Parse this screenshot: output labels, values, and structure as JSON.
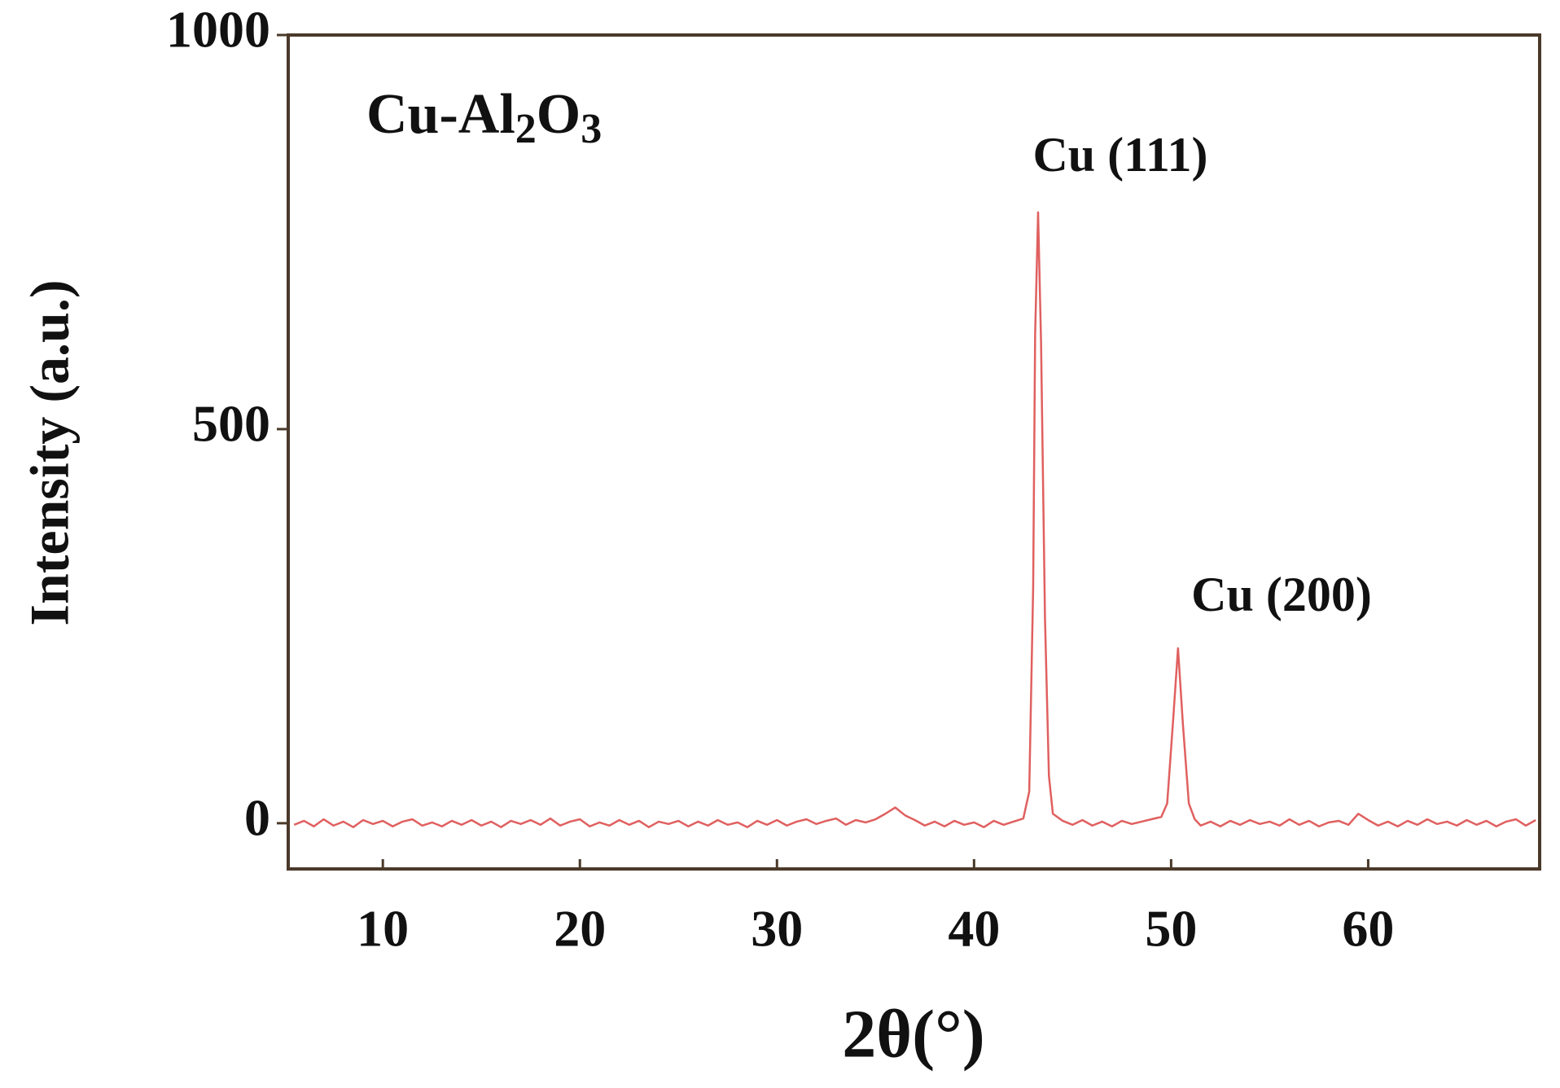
{
  "chart_data": {
    "type": "line",
    "x_label": "2θ(°)",
    "y_label": "Intensity (a.u.)",
    "annotations": [
      "Cu-Al2O3",
      "Cu (111)",
      "Cu (200)"
    ],
    "xlim": [
      5.2,
      68.7
    ],
    "ylim": [
      -58,
      1000
    ],
    "xticks": [
      10,
      20,
      30,
      40,
      50,
      60
    ],
    "yticks": [
      0,
      500,
      1000
    ],
    "grid": false,
    "series": [
      {
        "color": "#e06060",
        "x": [
          5.5,
          6,
          6.5,
          7,
          7.5,
          8,
          8.5,
          9,
          9.5,
          10,
          10.5,
          11,
          11.5,
          12,
          12.5,
          13,
          13.5,
          14,
          14.5,
          15,
          15.5,
          16,
          16.5,
          17,
          17.5,
          18,
          18.5,
          19,
          19.5,
          20,
          20.5,
          21,
          21.5,
          22,
          22.5,
          23,
          23.5,
          24,
          24.5,
          25,
          25.5,
          26,
          26.5,
          27,
          27.5,
          28,
          28.5,
          29,
          29.5,
          30,
          30.5,
          31,
          31.5,
          32,
          32.5,
          33,
          33.5,
          34,
          34.5,
          35,
          35.5,
          36,
          36.5,
          37,
          37.5,
          38,
          38.5,
          39,
          39.5,
          40,
          40.5,
          41,
          41.5,
          42,
          42.5,
          42.8,
          43,
          43.1,
          43.25,
          43.4,
          43.6,
          43.8,
          44,
          44.5,
          45,
          45.5,
          46,
          46.5,
          47,
          47.5,
          48,
          48.5,
          49,
          49.5,
          49.8,
          50.1,
          50.35,
          50.6,
          50.9,
          51.2,
          51.5,
          52,
          52.5,
          53,
          53.5,
          54,
          54.5,
          55,
          55.5,
          56,
          56.5,
          57,
          57.5,
          58,
          58.5,
          59,
          59.5,
          60,
          60.5,
          61,
          61.5,
          62,
          62.5,
          63,
          63.5,
          64,
          64.5,
          65,
          65.5,
          66,
          66.5,
          67,
          67.5,
          68,
          68.5
        ],
        "values": [
          -2,
          3,
          -4,
          5,
          -3,
          2,
          -5,
          4,
          -1,
          3,
          -4,
          2,
          5,
          -3,
          1,
          -4,
          3,
          -2,
          4,
          -3,
          2,
          -5,
          3,
          -1,
          4,
          -2,
          6,
          -3,
          2,
          5,
          -4,
          1,
          -3,
          4,
          -2,
          3,
          -5,
          2,
          -1,
          3,
          -4,
          2,
          -3,
          4,
          -2,
          1,
          -5,
          3,
          -2,
          4,
          -3,
          2,
          5,
          -1,
          3,
          6,
          -2,
          4,
          1,
          5,
          12,
          20,
          10,
          4,
          -3,
          2,
          -4,
          3,
          -2,
          1,
          -5,
          3,
          -2,
          2,
          6,
          40,
          300,
          620,
          775,
          610,
          260,
          60,
          12,
          3,
          -2,
          4,
          -3,
          2,
          -4,
          3,
          -1,
          2,
          5,
          8,
          25,
          130,
          222,
          125,
          25,
          5,
          -3,
          2,
          -4,
          3,
          -2,
          4,
          -1,
          2,
          -3,
          5,
          -2,
          3,
          -4,
          1,
          3,
          -2,
          12,
          4,
          -3,
          2,
          -4,
          3,
          -2,
          5,
          -1,
          2,
          -3,
          4,
          -2,
          3,
          -4,
          2,
          5,
          -3,
          4
        ]
      }
    ]
  }
}
